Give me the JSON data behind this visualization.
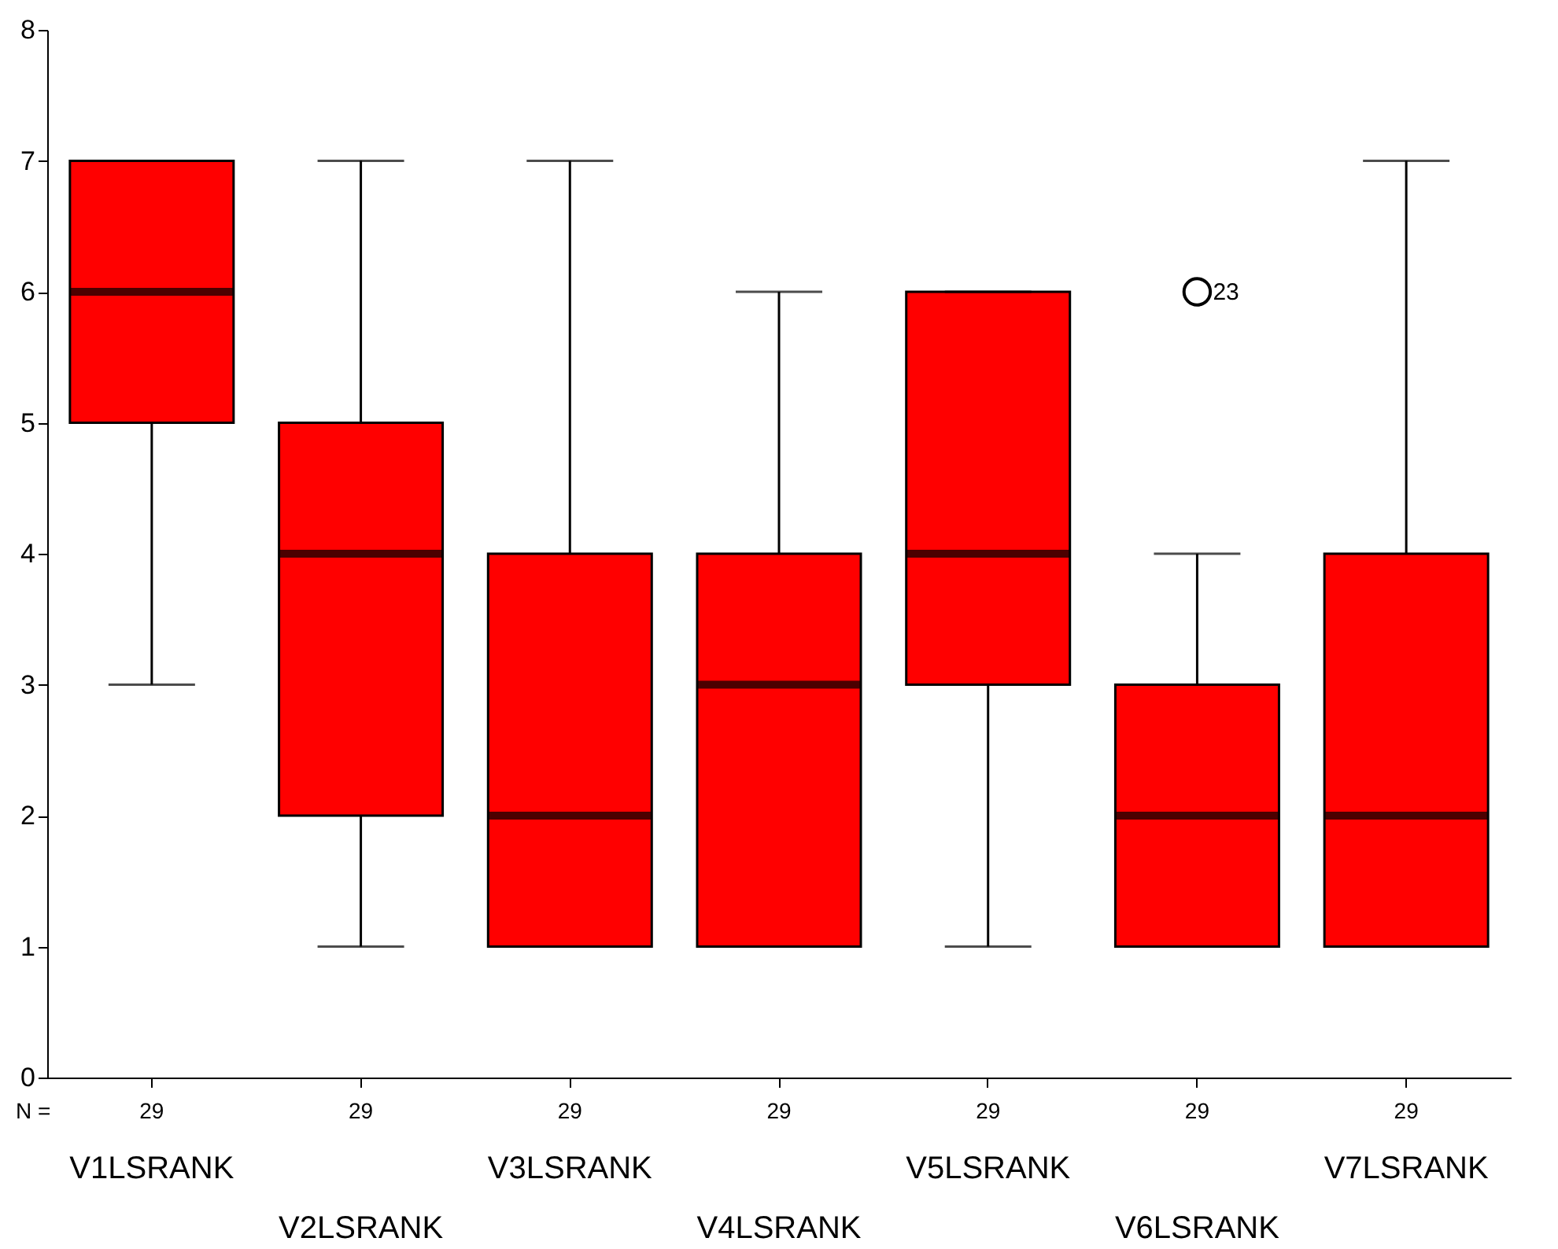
{
  "chart_data": {
    "type": "box",
    "categories": [
      "V1LSRANK",
      "V2LSRANK",
      "V3LSRANK",
      "V4LSRANK",
      "V5LSRANK",
      "V6LSRANK",
      "V7LSRANK"
    ],
    "series": [
      {
        "color": "#ff0000",
        "boxes": [
          {
            "low": 3,
            "q1": 5,
            "median": 6,
            "q3": 7,
            "high": 7
          },
          {
            "low": 1,
            "q1": 2,
            "median": 4,
            "q3": 5,
            "high": 7
          },
          {
            "low": 1,
            "q1": 1,
            "median": 2,
            "q3": 4,
            "high": 7
          },
          {
            "low": 1,
            "q1": 1,
            "median": 3,
            "q3": 4,
            "high": 6
          },
          {
            "low": 1,
            "q1": 3,
            "median": 4,
            "q3": 6,
            "high": 6
          },
          {
            "low": 1,
            "q1": 1,
            "median": 2,
            "q3": 3,
            "high": 4,
            "outliers": [
              6
            ]
          },
          {
            "low": 1,
            "q1": 1,
            "median": 2,
            "q3": 4,
            "high": 7
          }
        ]
      }
    ],
    "ylim": [
      0,
      8
    ],
    "yticks": [
      0,
      1,
      2,
      3,
      4,
      5,
      6,
      7,
      8
    ],
    "grid": false,
    "annotations": [
      "N =",
      {
        "text": "29",
        "x": "V1LSRANK"
      },
      {
        "text": "29",
        "x": "V2LSRANK"
      },
      {
        "text": "29",
        "x": "V3LSRANK"
      },
      {
        "text": "29",
        "x": "V4LSRANK"
      },
      {
        "text": "29",
        "x": "V5LSRANK"
      },
      {
        "text": "29",
        "x": "V6LSRANK"
      },
      {
        "text": "29",
        "x": "V7LSRANK"
      },
      "23"
    ]
  }
}
